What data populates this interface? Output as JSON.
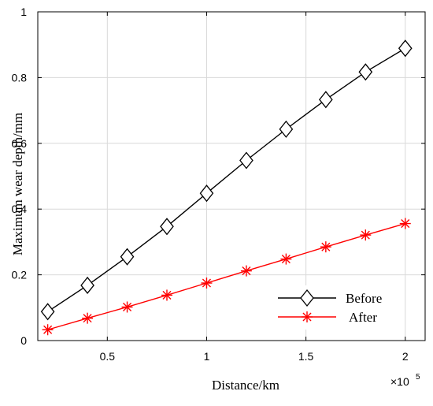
{
  "chart_data": {
    "type": "line",
    "xlabel": "Distance/km",
    "ylabel": "Maximum wear depth/mm",
    "x_multiplier_label": "×10",
    "x_multiplier_exponent": "5",
    "xlim": [
      0.15,
      2.1
    ],
    "ylim": [
      0,
      1
    ],
    "x_ticks": [
      0.5,
      1,
      1.5,
      2
    ],
    "x_tick_labels": [
      "0.5",
      "1",
      "1.5",
      "2"
    ],
    "y_ticks": [
      0,
      0.2,
      0.4,
      0.6,
      0.8,
      1
    ],
    "y_tick_labels": [
      "0",
      "0.2",
      "0.4",
      "0.6",
      "0.8",
      "1"
    ],
    "grid": true,
    "legend_position": "bottom-right",
    "x": [
      0.2,
      0.4,
      0.6,
      0.8,
      1.0,
      1.2,
      1.4,
      1.6,
      1.8,
      2.0
    ],
    "series": [
      {
        "name": "Before",
        "color": "#000000",
        "marker": "diamond",
        "values": [
          0.088,
          0.168,
          0.255,
          0.347,
          0.448,
          0.548,
          0.643,
          0.733,
          0.817,
          0.889
        ]
      },
      {
        "name": "After",
        "color": "#ff0000",
        "marker": "asterisk",
        "values": [
          0.033,
          0.068,
          0.102,
          0.138,
          0.175,
          0.212,
          0.248,
          0.285,
          0.321,
          0.356
        ]
      }
    ]
  }
}
